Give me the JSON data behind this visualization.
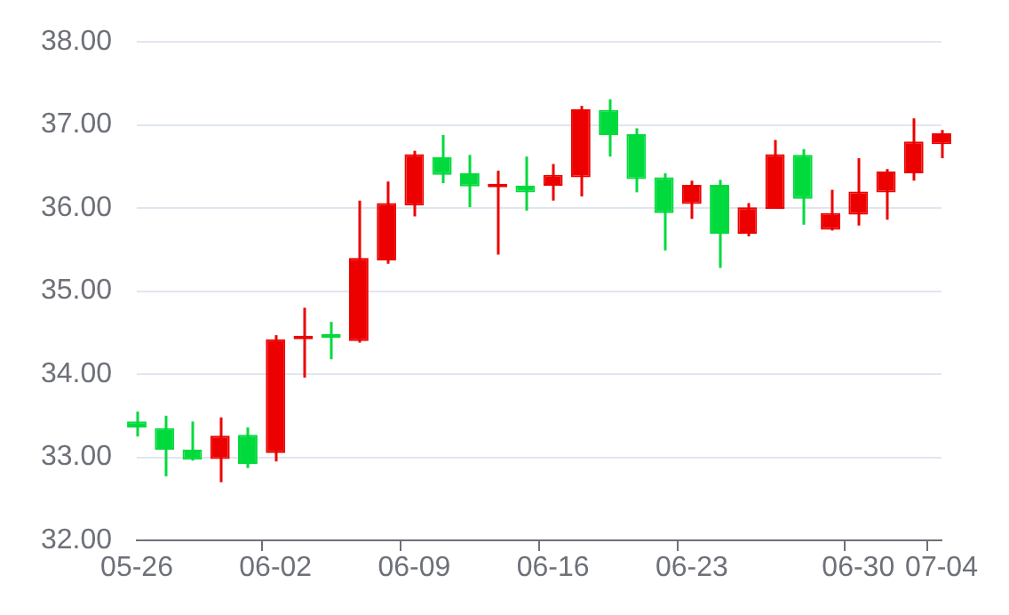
{
  "chart_data": {
    "type": "candlestick",
    "categories": [
      "05-26",
      null,
      null,
      null,
      null,
      "06-02",
      null,
      null,
      null,
      null,
      "06-09",
      null,
      null,
      null,
      null,
      "06-16",
      null,
      null,
      null,
      null,
      "06-23",
      null,
      null,
      null,
      null,
      null,
      "06-30",
      null,
      null,
      "07-04"
    ],
    "ohlc": [
      [
        33.43,
        33.55,
        33.25,
        33.36
      ],
      [
        33.35,
        33.5,
        32.77,
        33.09
      ],
      [
        33.09,
        33.43,
        32.96,
        32.97
      ],
      [
        32.98,
        33.48,
        32.7,
        33.26
      ],
      [
        33.27,
        33.36,
        32.87,
        32.92
      ],
      [
        33.05,
        34.47,
        32.95,
        34.42
      ],
      [
        34.42,
        34.8,
        33.96,
        34.44
      ],
      [
        34.47,
        34.63,
        34.18,
        34.44
      ],
      [
        34.4,
        36.09,
        34.38,
        35.4
      ],
      [
        35.37,
        36.32,
        35.33,
        36.06
      ],
      [
        36.03,
        36.69,
        35.9,
        36.65
      ],
      [
        36.61,
        36.88,
        36.3,
        36.4
      ],
      [
        36.42,
        36.64,
        36.01,
        36.26
      ],
      [
        36.25,
        36.45,
        35.44,
        36.27
      ],
      [
        36.27,
        36.62,
        35.97,
        36.19
      ],
      [
        36.27,
        36.53,
        36.09,
        36.4
      ],
      [
        36.37,
        37.23,
        36.14,
        37.19
      ],
      [
        37.18,
        37.31,
        36.62,
        36.88
      ],
      [
        36.89,
        36.96,
        36.19,
        36.35
      ],
      [
        36.37,
        36.42,
        35.49,
        35.94
      ],
      [
        36.05,
        36.33,
        35.87,
        36.28
      ],
      [
        36.28,
        36.34,
        35.28,
        35.69
      ],
      [
        35.69,
        36.06,
        35.66,
        36.01
      ],
      [
        35.99,
        36.82,
        35.99,
        36.65
      ],
      [
        36.64,
        36.71,
        35.8,
        36.11
      ],
      [
        35.74,
        36.22,
        35.73,
        35.94
      ],
      [
        35.92,
        36.6,
        35.79,
        36.2
      ],
      [
        36.19,
        36.47,
        35.86,
        36.44
      ],
      [
        36.42,
        37.08,
        36.33,
        36.8
      ],
      [
        36.77,
        36.94,
        36.6,
        36.9
      ]
    ],
    "colors": [
      "#00da3c",
      "#00da3c",
      "#00da3c",
      "#ec0000",
      "#00da3c",
      "#ec0000",
      "#ec0000",
      "#00da3c",
      "#ec0000",
      "#ec0000",
      "#ec0000",
      "#00da3c",
      "#00da3c",
      "#ec0000",
      "#00da3c",
      "#ec0000",
      "#ec0000",
      "#00da3c",
      "#00da3c",
      "#00da3c",
      "#ec0000",
      "#00da3c",
      "#ec0000",
      "#ec0000",
      "#00da3c",
      "#ec0000",
      "#ec0000",
      "#ec0000",
      "#ec0000",
      "#ec0000"
    ],
    "ylim": [
      32,
      38
    ],
    "yticks": [
      {
        "value": 32,
        "label": "32.00"
      },
      {
        "value": 33,
        "label": "33.00"
      },
      {
        "value": 34,
        "label": "34.00"
      },
      {
        "value": 35,
        "label": "35.00"
      },
      {
        "value": 36,
        "label": "36.00"
      },
      {
        "value": 37,
        "label": "37.00"
      },
      {
        "value": 38,
        "label": "38.00"
      }
    ],
    "grid": "y"
  }
}
